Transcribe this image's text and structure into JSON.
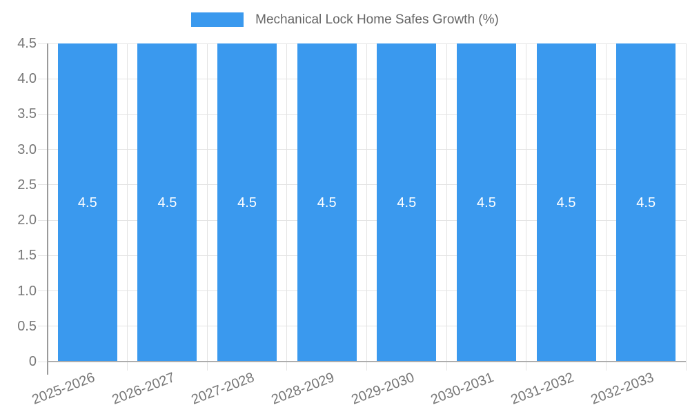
{
  "chart_data": {
    "type": "bar",
    "title": "Mechanical Lock Home Safes Growth (%)",
    "legend": {
      "label": "Mechanical Lock Home Safes Growth (%)",
      "position": "top-center"
    },
    "categories": [
      "2025-2026",
      "2026-2027",
      "2027-2028",
      "2028-2029",
      "2029-2030",
      "2030-2031",
      "2031-2032",
      "2032-2033"
    ],
    "values": [
      4.5,
      4.5,
      4.5,
      4.5,
      4.5,
      4.5,
      4.5,
      4.5
    ],
    "value_labels": [
      "4.5",
      "4.5",
      "4.5",
      "4.5",
      "4.5",
      "4.5",
      "4.5",
      "4.5"
    ],
    "xlabel": "",
    "ylabel": "",
    "ylim": [
      0,
      4.5
    ],
    "yticks": [
      "0",
      "0.5",
      "1.0",
      "1.5",
      "2.0",
      "2.5",
      "3.0",
      "3.5",
      "4.0",
      "4.5"
    ],
    "grid": true,
    "colors": {
      "bar": "#3A99EE",
      "grid": "#E3E3E3",
      "axis": "#ADADAD",
      "y_axis": "#9A9A9A",
      "tick_text": "#777777",
      "legend_text": "#666666",
      "bar_label_text": "#FFFFFF",
      "background": "#FFFFFF"
    }
  }
}
